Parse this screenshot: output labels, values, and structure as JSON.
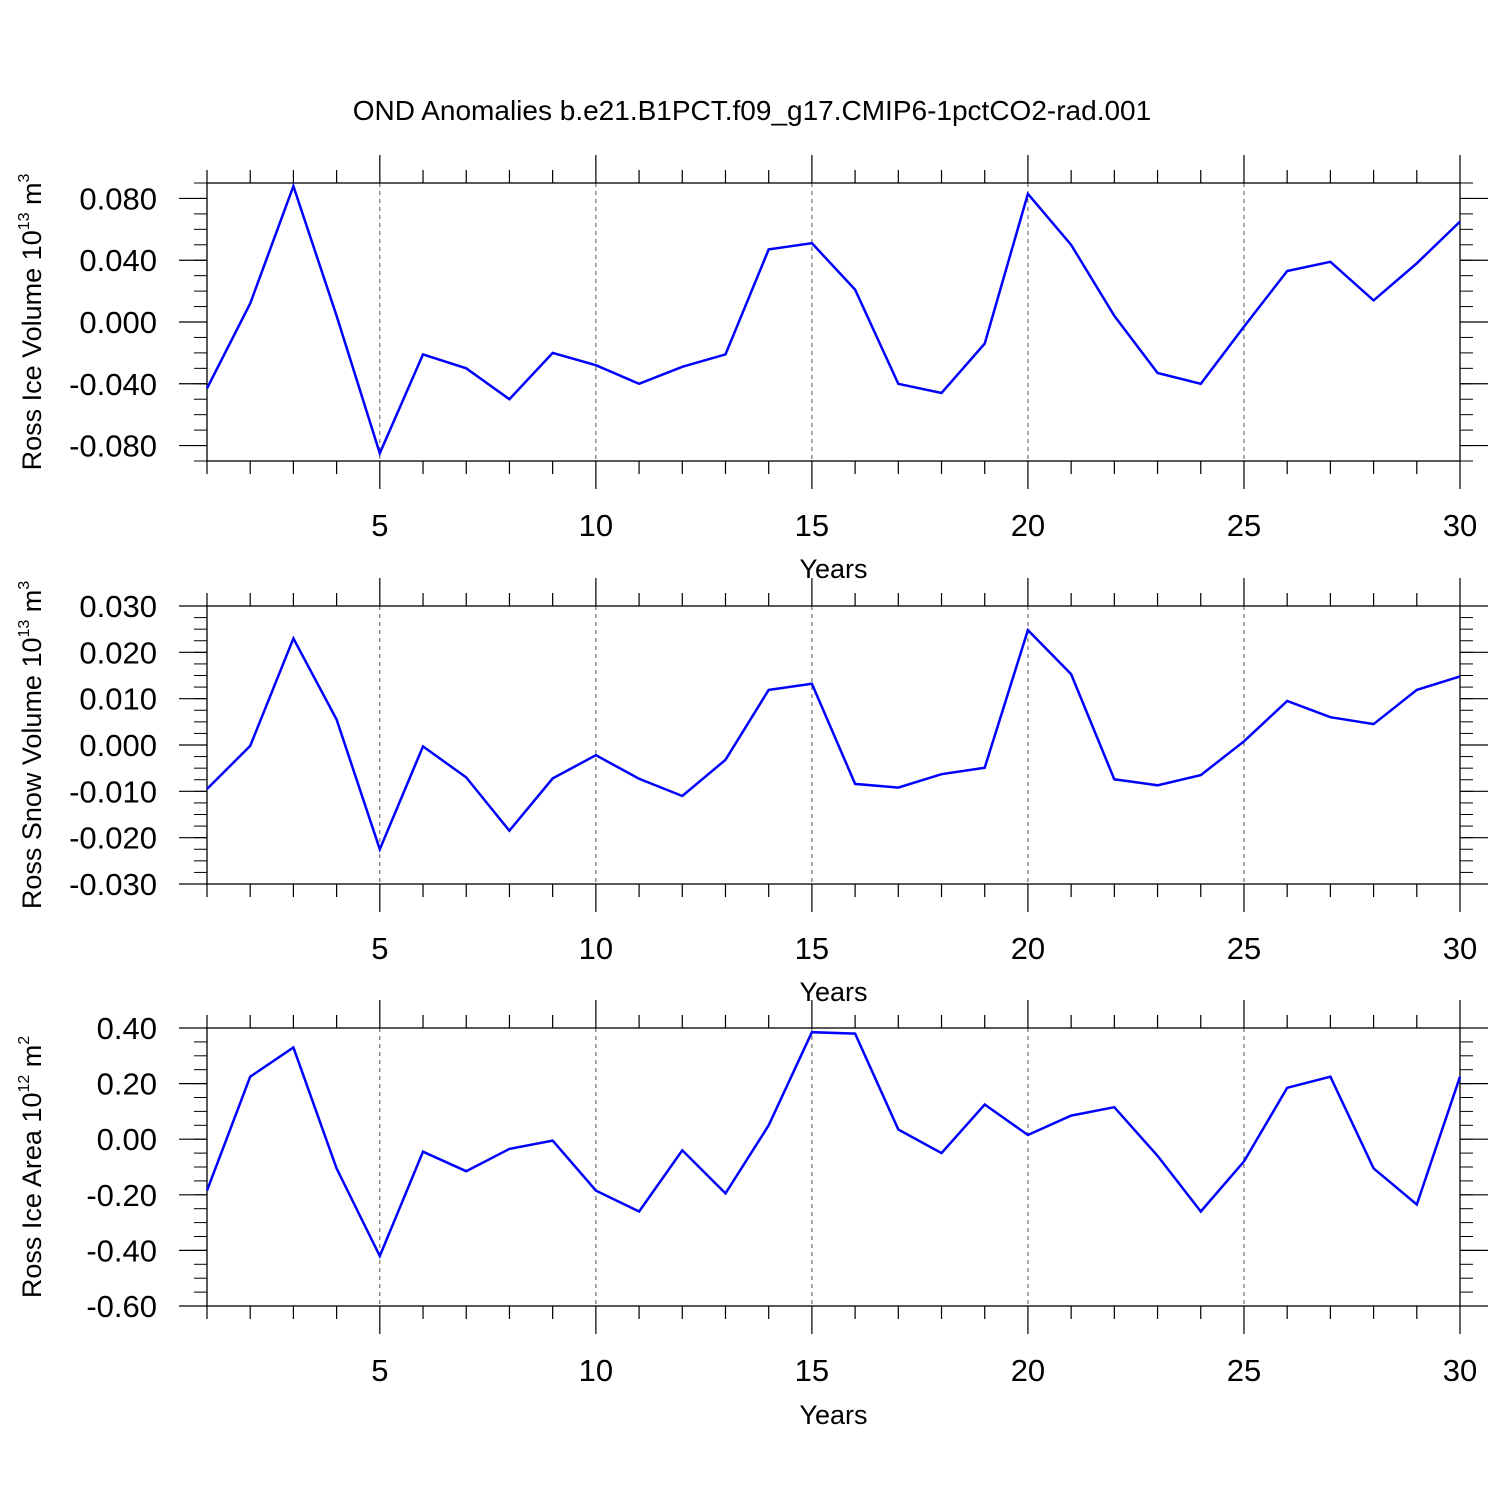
{
  "title": "OND Anomalies b.e21.B1PCT.f09_g17.CMIP6-1pctCO2-rad.001",
  "colors": {
    "line": "#0000ff",
    "axis": "#000000",
    "grid": "#555555"
  },
  "chart_data": [
    {
      "type": "line",
      "ylabel": {
        "text": "Ross Ice Volume 10",
        "exp": "13",
        "unit": " m",
        "unit_exp": "3"
      },
      "xlabel": "Years",
      "xlim": [
        1,
        30
      ],
      "ylim": [
        -0.09,
        0.09
      ],
      "xticks": [
        5,
        10,
        15,
        20,
        25,
        30
      ],
      "xtick_labels": [
        "5",
        "10",
        "15",
        "20",
        "25",
        "30"
      ],
      "yticks": [
        -0.08,
        -0.04,
        0.0,
        0.04,
        0.08
      ],
      "ytick_labels": [
        "-0.080",
        "-0.040",
        "0.000",
        "0.040",
        "0.080"
      ],
      "ytick_minor_step": 0.01,
      "series": [
        {
          "name": "Ross Ice Volume",
          "x": [
            1,
            2,
            3,
            4,
            5,
            6,
            7,
            8,
            9,
            10,
            11,
            12,
            13,
            14,
            15,
            16,
            17,
            18,
            19,
            20,
            21,
            22,
            23,
            24,
            25,
            26,
            27,
            28,
            29,
            30
          ],
          "values": [
            -0.043,
            0.012,
            0.088,
            0.004,
            -0.085,
            -0.021,
            -0.03,
            -0.05,
            -0.02,
            -0.028,
            -0.04,
            -0.029,
            -0.021,
            0.047,
            0.051,
            0.021,
            -0.04,
            -0.046,
            -0.014,
            0.083,
            0.05,
            0.004,
            -0.033,
            -0.04,
            -0.003,
            0.033,
            0.039,
            0.014,
            0.038,
            0.065
          ]
        }
      ]
    },
    {
      "type": "line",
      "ylabel": {
        "text": "Ross Snow Volume 10",
        "exp": "13",
        "unit": " m",
        "unit_exp": "3"
      },
      "xlabel": "Years",
      "xlim": [
        1,
        30
      ],
      "ylim": [
        -0.03,
        0.03
      ],
      "xticks": [
        5,
        10,
        15,
        20,
        25,
        30
      ],
      "xtick_labels": [
        "5",
        "10",
        "15",
        "20",
        "25",
        "30"
      ],
      "yticks": [
        -0.03,
        -0.02,
        -0.01,
        0.0,
        0.01,
        0.02,
        0.03
      ],
      "ytick_labels": [
        "-0.030",
        "-0.020",
        "-0.010",
        "0.000",
        "0.010",
        "0.020",
        "0.030"
      ],
      "ytick_minor_step": 0.0025,
      "series": [
        {
          "name": "Ross Snow Volume",
          "x": [
            1,
            2,
            3,
            4,
            5,
            6,
            7,
            8,
            9,
            10,
            11,
            12,
            13,
            14,
            15,
            16,
            17,
            18,
            19,
            20,
            21,
            22,
            23,
            24,
            25,
            26,
            27,
            28,
            29,
            30
          ],
          "values": [
            -0.0095,
            -0.0002,
            0.023,
            0.0055,
            -0.0225,
            -0.0003,
            -0.007,
            -0.0185,
            -0.0072,
            -0.0022,
            -0.0073,
            -0.011,
            -0.0032,
            0.0119,
            0.0132,
            -0.0084,
            -0.0092,
            -0.0063,
            -0.0049,
            0.0248,
            0.0153,
            -0.0074,
            -0.0087,
            -0.0065,
            0.0008,
            0.0095,
            0.006,
            0.0045,
            0.0119,
            0.0148
          ]
        }
      ]
    },
    {
      "type": "line",
      "ylabel": {
        "text": "Ross Ice Area 10",
        "exp": "12",
        "unit": " m",
        "unit_exp": "2"
      },
      "xlabel": "Years",
      "xlim": [
        1,
        30
      ],
      "ylim": [
        -0.6,
        0.4
      ],
      "xticks": [
        5,
        10,
        15,
        20,
        25,
        30
      ],
      "xtick_labels": [
        "5",
        "10",
        "15",
        "20",
        "25",
        "30"
      ],
      "yticks": [
        -0.6,
        -0.4,
        -0.2,
        0.0,
        0.2,
        0.4
      ],
      "ytick_labels": [
        "-0.60",
        "-0.40",
        "-0.20",
        "0.00",
        "0.20",
        "0.40"
      ],
      "ytick_minor_step": 0.05,
      "series": [
        {
          "name": "Ross Ice Area",
          "x": [
            1,
            2,
            3,
            4,
            5,
            6,
            7,
            8,
            9,
            10,
            11,
            12,
            13,
            14,
            15,
            16,
            17,
            18,
            19,
            20,
            21,
            22,
            23,
            24,
            25,
            26,
            27,
            28,
            29,
            30
          ],
          "values": [
            -0.185,
            0.225,
            0.33,
            -0.105,
            -0.42,
            -0.045,
            -0.115,
            -0.035,
            -0.005,
            -0.185,
            -0.26,
            -0.04,
            -0.195,
            0.05,
            0.385,
            0.38,
            0.035,
            -0.05,
            0.125,
            0.015,
            0.085,
            0.115,
            -0.06,
            -0.26,
            -0.08,
            0.185,
            0.225,
            -0.105,
            -0.235,
            0.225
          ]
        }
      ]
    }
  ]
}
